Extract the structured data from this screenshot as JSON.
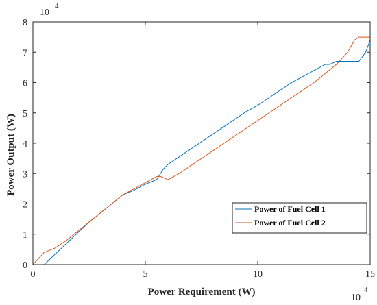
{
  "chart_data": {
    "type": "line",
    "xlabel": "Power Requirement (W)",
    "ylabel": "Power Output (W)",
    "xlim": [
      0,
      150000
    ],
    "ylim": [
      0,
      80000
    ],
    "x_multiplier_label": "10",
    "x_multiplier_exponent": "4",
    "y_multiplier_label": "10",
    "y_multiplier_exponent": "4",
    "x_ticks": [
      {
        "value": 0,
        "label": "0"
      },
      {
        "value": 50000,
        "label": "5"
      },
      {
        "value": 100000,
        "label": "10"
      },
      {
        "value": 150000,
        "label": "15"
      }
    ],
    "y_ticks": [
      {
        "value": 0,
        "label": "0"
      },
      {
        "value": 10000,
        "label": "1"
      },
      {
        "value": 20000,
        "label": "2"
      },
      {
        "value": 30000,
        "label": "3"
      },
      {
        "value": 40000,
        "label": "4"
      },
      {
        "value": 50000,
        "label": "5"
      },
      {
        "value": 60000,
        "label": "6"
      },
      {
        "value": 70000,
        "label": "7"
      },
      {
        "value": 80000,
        "label": "8"
      }
    ],
    "grid": false,
    "legend_position": "lower-right",
    "series": [
      {
        "name": "Power of Fuel Cell 1",
        "color": "#0072BD",
        "x": [
          0,
          5000,
          10000,
          15000,
          20000,
          25000,
          30000,
          35000,
          40000,
          45000,
          50000,
          55000,
          58000,
          60000,
          65000,
          70000,
          75000,
          80000,
          85000,
          90000,
          95000,
          100000,
          105000,
          110000,
          115000,
          120000,
          125000,
          130000,
          132000,
          135000,
          140000,
          145000,
          148000,
          150000
        ],
        "y": [
          0,
          0,
          3500,
          7000,
          10500,
          14000,
          17000,
          20000,
          23000,
          24500,
          26500,
          28000,
          31500,
          33000,
          35500,
          38000,
          40500,
          43000,
          45500,
          48000,
          50500,
          52500,
          55000,
          57500,
          60000,
          62000,
          64000,
          66000,
          66000,
          67000,
          67000,
          67000,
          70000,
          74000
        ]
      },
      {
        "name": "Power of Fuel Cell 2",
        "color": "#D95319",
        "x": [
          0,
          5000,
          10000,
          15000,
          20000,
          25000,
          30000,
          35000,
          40000,
          45000,
          50000,
          55000,
          57000,
          60000,
          65000,
          70000,
          75000,
          80000,
          85000,
          90000,
          95000,
          100000,
          105000,
          110000,
          115000,
          120000,
          125000,
          130000,
          135000,
          140000,
          143000,
          145000,
          148000,
          150000
        ],
        "y": [
          0,
          4000,
          5500,
          8000,
          11000,
          14000,
          17000,
          20000,
          23000,
          25000,
          27000,
          29000,
          29000,
          28000,
          30000,
          32500,
          35000,
          37500,
          40000,
          42500,
          45000,
          47500,
          50000,
          52500,
          55000,
          57500,
          60000,
          63000,
          66000,
          70000,
          74000,
          75000,
          75000,
          75000
        ]
      }
    ]
  }
}
